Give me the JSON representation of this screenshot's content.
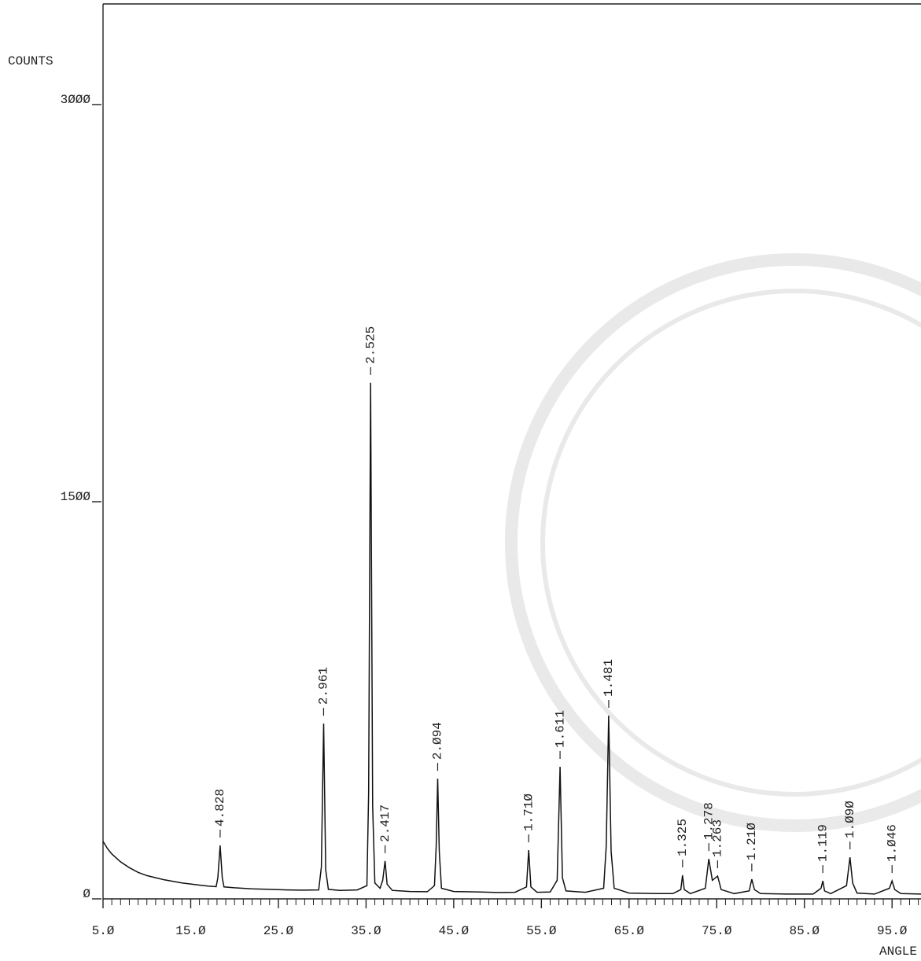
{
  "chart_data": {
    "type": "line",
    "y_label": "COUNTS",
    "x_label": "ANGLE",
    "xlim": [
      5,
      98.3
    ],
    "ylim": [
      0,
      3380
    ],
    "xticks": [
      {
        "value": 5,
        "label": "5.Ø"
      },
      {
        "value": 15,
        "label": "15.Ø"
      },
      {
        "value": 25,
        "label": "25.Ø"
      },
      {
        "value": 35,
        "label": "35.Ø"
      },
      {
        "value": 45,
        "label": "45.Ø"
      },
      {
        "value": 55,
        "label": "55.Ø"
      },
      {
        "value": 65,
        "label": "65.Ø"
      },
      {
        "value": 75,
        "label": "75.Ø"
      },
      {
        "value": 85,
        "label": "85.Ø"
      },
      {
        "value": 95,
        "label": "95.Ø"
      }
    ],
    "xminorticks": [
      6,
      7,
      8,
      9,
      10,
      11,
      12,
      13,
      14,
      16,
      17,
      18,
      19,
      20,
      21,
      22,
      23,
      24,
      26,
      27,
      28,
      29,
      30,
      31,
      32,
      33,
      34,
      36,
      37,
      38,
      39,
      40,
      41,
      42,
      43,
      44,
      46,
      47,
      48,
      49,
      50,
      51,
      52,
      53,
      54,
      56,
      57,
      58,
      59,
      60,
      61,
      62,
      63,
      64,
      66,
      67,
      68,
      69,
      70,
      71,
      72,
      73,
      74,
      76,
      77,
      78,
      79,
      80,
      81,
      82,
      83,
      84,
      86,
      87,
      88,
      89,
      90,
      91,
      92,
      93,
      94,
      96,
      97,
      98
    ],
    "yticks": [
      {
        "value": 0,
        "label": "Ø"
      },
      {
        "value": 1500,
        "label": "15ØØ"
      },
      {
        "value": 3000,
        "label": "3ØØØ"
      }
    ],
    "series": [
      {
        "color": "#111",
        "x": [
          5.0,
          5.5,
          6,
          7,
          8,
          9,
          10,
          11,
          12,
          13,
          14,
          15,
          16,
          17,
          17.9,
          18.1,
          18.36,
          18.6,
          18.8,
          20,
          22,
          24,
          26,
          28,
          29.6,
          29.9,
          30.16,
          30.4,
          30.7,
          32,
          34,
          35.1,
          35.3,
          35.52,
          35.75,
          36,
          36.6,
          36.9,
          37.17,
          37.4,
          38,
          40,
          42,
          42.8,
          43.0,
          43.17,
          43.35,
          43.6,
          45,
          48,
          50,
          52,
          53.3,
          53.55,
          53.8,
          54.5,
          56,
          56.8,
          57.13,
          57.4,
          57.8,
          60,
          62.1,
          62.4,
          62.68,
          62.95,
          63.3,
          65,
          68,
          70,
          70.9,
          71.1,
          71.3,
          72,
          73.7,
          74.1,
          74.5,
          75.1,
          75.5,
          77,
          78.7,
          79.0,
          79.3,
          80,
          83,
          86,
          86.9,
          87.1,
          87.3,
          88,
          89.8,
          90.2,
          90.5,
          91,
          93,
          94.7,
          95.0,
          95.3,
          96,
          98.3
        ],
        "values": [
          217,
          190,
          170,
          140,
          118,
          100,
          88,
          80,
          72,
          66,
          60,
          56,
          52,
          48,
          46,
          80,
          202,
          80,
          45,
          42,
          38,
          36,
          34,
          33,
          34,
          120,
          662,
          110,
          36,
          32,
          34,
          50,
          400,
          1949,
          350,
          60,
          40,
          70,
          143,
          55,
          32,
          28,
          27,
          50,
          200,
          454,
          180,
          40,
          28,
          26,
          24,
          25,
          45,
          184,
          45,
          25,
          26,
          70,
          499,
          80,
          30,
          25,
          40,
          200,
          692,
          180,
          40,
          22,
          20,
          20,
          35,
          89,
          35,
          20,
          40,
          151,
          70,
          86,
          35,
          20,
          30,
          74,
          35,
          20,
          18,
          18,
          40,
          68,
          30,
          20,
          50,
          157,
          60,
          22,
          18,
          40,
          68,
          35,
          20,
          18
        ]
      }
    ],
    "peaks": [
      {
        "x": 18.36,
        "label": "4.828"
      },
      {
        "x": 30.16,
        "label": "2.961"
      },
      {
        "x": 35.52,
        "label": "2.525"
      },
      {
        "x": 37.17,
        "label": "2.417"
      },
      {
        "x": 43.17,
        "label": "2.Ø94"
      },
      {
        "x": 53.55,
        "label": "1.71Ø"
      },
      {
        "x": 57.13,
        "label": "1.611"
      },
      {
        "x": 62.68,
        "label": "1.481"
      },
      {
        "x": 71.1,
        "label": "1.325"
      },
      {
        "x": 74.1,
        "label": "1.278"
      },
      {
        "x": 75.1,
        "label": "1.263"
      },
      {
        "x": 79.0,
        "label": "1.21Ø"
      },
      {
        "x": 87.1,
        "label": "1.119"
      },
      {
        "x": 90.2,
        "label": "1.Ø9Ø"
      },
      {
        "x": 95.0,
        "label": "1.Ø46"
      }
    ]
  }
}
